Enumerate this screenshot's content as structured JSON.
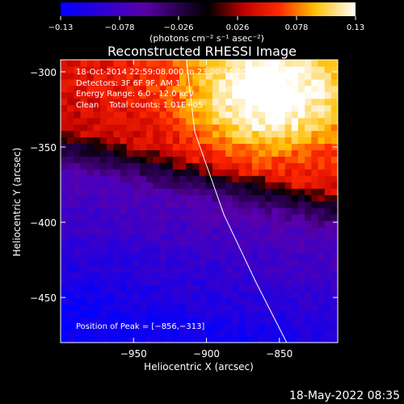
{
  "chart_data": {
    "type": "heatmap",
    "title": "Reconstructed RHESSI Image",
    "xlabel": "Heliocentric X (arcsec)",
    "ylabel": "Heliocentric Y (arcsec)",
    "xlim": [
      -1000,
      -810
    ],
    "ylim": [
      -480,
      -292
    ],
    "xticks": [
      -950,
      -900,
      -850
    ],
    "xtick_labels": [
      "−950",
      "−900",
      "−850"
    ],
    "yticks": [
      -300,
      -350,
      -400,
      -450
    ],
    "ytick_labels": [
      "−300",
      "−350",
      "−400",
      "−450"
    ],
    "colorbar": {
      "range": [
        -0.13,
        0.13
      ],
      "ticks": [
        -0.13,
        -0.078,
        -0.026,
        0.026,
        0.078,
        0.13
      ],
      "tick_labels": [
        "−0.13",
        "−0.078",
        "−0.026",
        "0.026",
        "0.078",
        "0.13"
      ],
      "unit_label": "(photons cm⁻² s⁻¹ asec⁻²)"
    },
    "annotations": [
      "18-Oct-2014 22:59:08.000 to 23:00:44.000",
      "Detectors: 3F 6F 9F, AM 1",
      "Energy Range: 6.0 - 12.0 keV",
      "Clean    Total counts: 1.01E+05"
    ],
    "peak_label": "Position of Peak = [−856,−313]",
    "peak": {
      "x": -856,
      "y": -313
    },
    "limb_curve": [
      [
        -914,
        -290
      ],
      [
        -908,
        -340
      ],
      [
        -888,
        -395
      ],
      [
        -866,
        -440
      ],
      [
        -845,
        -480
      ]
    ],
    "intensity_model": {
      "boundary_y_at_x_left": -345,
      "boundary_y_at_x_right": -388,
      "max_value": 0.13,
      "min_value": -0.13
    },
    "grid": false
  },
  "footer": {
    "date": "18-May-2022 08:35"
  }
}
